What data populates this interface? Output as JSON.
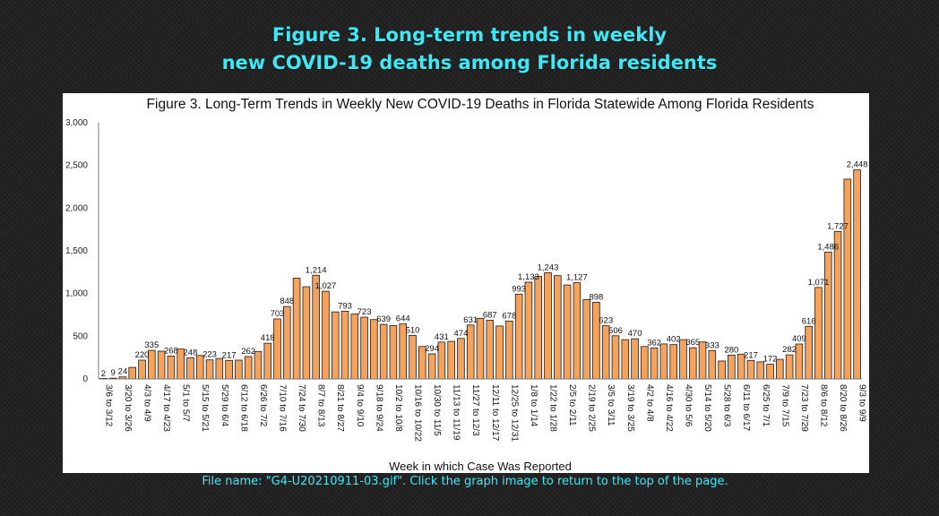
{
  "heading": {
    "line1": "Figure 3. Long-term trends in weekly",
    "line2": "new COVID-19 deaths among Florida residents"
  },
  "caption": "File name: \"G4-U20210911-03.gif\". Click the graph image to return to the top of the page.",
  "colors": {
    "page_background": "#232323",
    "heading": "#3ee8f5",
    "bar_fill": "#f5a35c",
    "bar_stroke": "#1a1a1a"
  },
  "chart_data": {
    "type": "bar",
    "title": "Figure 3. Long-Term Trends in Weekly New COVID-19 Deaths in Florida Statewide Among Florida Residents",
    "xlabel": "Week in which Case Was Reported",
    "ylabel": "",
    "ylim": [
      0,
      3000
    ],
    "yticks": [
      "0",
      "500",
      "1,000",
      "1,500",
      "2,000",
      "2,500",
      "3,000"
    ],
    "grid": false,
    "categories": [
      "3/6 to 3/12",
      "",
      "3/20 to 3/26",
      "",
      "4/3 to 4/9",
      "",
      "4/17 to 4/23",
      "",
      "5/1 to 5/7",
      "",
      "5/15 to 5/21",
      "",
      "5/29 to 6/4",
      "",
      "6/12 to 6/18",
      "",
      "6/26 to 7/2",
      "",
      "7/10 to 7/16",
      "",
      "7/24 to 7/30",
      "",
      "8/7 to 8/13",
      "",
      "8/21 to 8/27",
      "",
      "9/4 to 9/10",
      "",
      "9/18 to 9/24",
      "",
      "10/2 to 10/8",
      "",
      "10/16 to 10/22",
      "",
      "10/30 to 11/5",
      "",
      "11/13 to 11/19",
      "",
      "11/27 to 12/3",
      "",
      "12/11 to 12/17",
      "",
      "12/25 to 12/31",
      "",
      "1/8 to 1/14",
      "",
      "1/22 to 1/28",
      "",
      "2/5 to 2/11",
      "",
      "2/19 to 2/25",
      "",
      "3/5 to 3/11",
      "",
      "3/19 to 3/25",
      "",
      "4/2 to 4/8",
      "",
      "4/16 to 4/22",
      "",
      "4/30 to 5/6",
      "",
      "5/14 to 5/20",
      "",
      "5/28 to 6/3",
      "",
      "6/11 to 6/17",
      "",
      "6/25 to 7/1",
      "",
      "7/9 to 7/15",
      "",
      "7/23 to 7/29",
      "",
      "8/6 to 8/12",
      "",
      "8/20 to 8/26",
      "",
      "9/3 to 9/9"
    ],
    "values": [
      2,
      9,
      24,
      135,
      220,
      335,
      325,
      268,
      350,
      248,
      275,
      223,
      240,
      217,
      220,
      262,
      320,
      418,
      703,
      848,
      1180,
      1080,
      1214,
      1027,
      785,
      793,
      760,
      723,
      695,
      639,
      625,
      644,
      510,
      380,
      294,
      431,
      440,
      474,
      631,
      710,
      687,
      620,
      678,
      993,
      1133,
      1200,
      1243,
      1210,
      1100,
      1127,
      930,
      898,
      623,
      506,
      460,
      470,
      380,
      362,
      410,
      402,
      460,
      365,
      433,
      333,
      210,
      280,
      290,
      217,
      200,
      172,
      230,
      282,
      409,
      616,
      1071,
      1486,
      1727,
      2340,
      2448
    ],
    "data_labels": [
      "2",
      "9",
      "24",
      "",
      "220",
      "335",
      "",
      "268",
      "",
      "248",
      "",
      "223",
      "",
      "217",
      "",
      "262",
      "",
      "418",
      "703",
      "848",
      "",
      "",
      "1,214",
      "1,027",
      "",
      "793",
      "",
      "723",
      "",
      "639",
      "",
      "644",
      "510",
      "",
      "294",
      "431",
      "",
      "474",
      "631",
      "",
      "687",
      "",
      "678",
      "993",
      "1,133",
      "",
      "1,243",
      "",
      "",
      "1,127",
      "",
      "898",
      "623",
      "506",
      "",
      "470",
      "",
      "362",
      "",
      "402",
      "",
      "365",
      "",
      "333",
      "",
      "280",
      "",
      "217",
      "",
      "172",
      "",
      "282",
      "409",
      "616",
      "1,071",
      "1,486",
      "1,727",
      "",
      "2,448"
    ]
  }
}
